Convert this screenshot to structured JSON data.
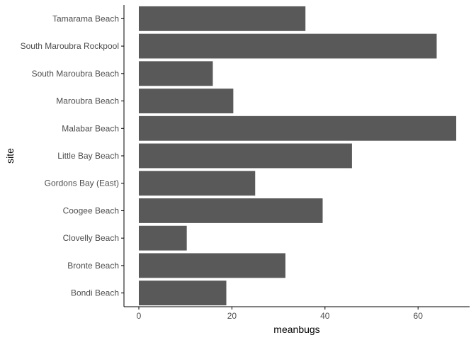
{
  "chart_data": {
    "type": "bar",
    "orientation": "horizontal",
    "xlabel": "meanbugs",
    "ylabel": "site",
    "xlim": [
      0,
      71.4
    ],
    "xticks": [
      0,
      20,
      40,
      60
    ],
    "grid": false,
    "categories": [
      "Bondi Beach",
      "Bronte Beach",
      "Clovelly Beach",
      "Coogee Beach",
      "Gordons Bay (East)",
      "Little Bay Beach",
      "Malabar Beach",
      "Maroubra Beach",
      "South Maroubra Beach",
      "South Maroubra Rockpool",
      "Tamarama Beach"
    ],
    "values": [
      18.8,
      31.5,
      10.3,
      39.5,
      25.0,
      45.8,
      68.2,
      20.3,
      15.9,
      64.0,
      35.8
    ],
    "bar_color": "#595959",
    "axis_color": "#000000",
    "tick_label_color": "#4d4d4d"
  }
}
